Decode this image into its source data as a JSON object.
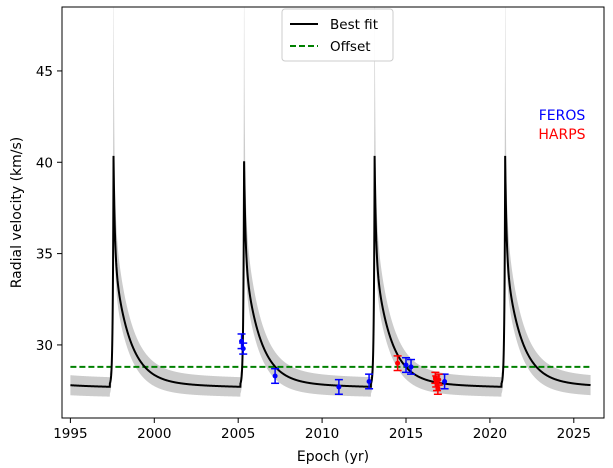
{
  "chart_data": {
    "type": "line",
    "xlabel": "Epoch (yr)",
    "ylabel": "Radial velocity (km/s)",
    "xlim": [
      1994.5,
      2026.8
    ],
    "ylim": [
      26.0,
      48.5
    ],
    "xticks": [
      {
        "value": 1995,
        "label": "1995"
      },
      {
        "value": 2000,
        "label": "2000"
      },
      {
        "value": 2005,
        "label": "2005"
      },
      {
        "value": 2010,
        "label": "2010"
      },
      {
        "value": 2015,
        "label": "2015"
      },
      {
        "value": 2020,
        "label": "2020"
      },
      {
        "value": 2025,
        "label": "2025"
      }
    ],
    "yticks": [
      {
        "value": 30,
        "label": "30"
      },
      {
        "value": 35,
        "label": "35"
      },
      {
        "value": 40,
        "label": "40"
      },
      {
        "value": 45,
        "label": "45"
      }
    ],
    "legend": {
      "placement": "top-center",
      "entries": [
        {
          "label": "Best fit",
          "color": "#000000",
          "style": "solid"
        },
        {
          "label": "Offset",
          "color": "#008000",
          "style": "dashed"
        }
      ]
    },
    "instrument_labels": [
      {
        "label": "FEROS",
        "color": "#0000ff"
      },
      {
        "label": "HARPS",
        "color": "#ff0000"
      }
    ],
    "model": {
      "period": 7.78,
      "periastron_epochs": [
        1997.57,
        2005.35,
        2013.13,
        2020.91
      ],
      "peak": 40.0,
      "minimum": 27.8,
      "band_peak": 48.0
    },
    "best_fit": {
      "name": "Best fit",
      "x_start": 1995.0,
      "x_end": 2026.0
    },
    "offset": {
      "name": "Offset",
      "y": 28.8,
      "x_start": 1995.0,
      "x_end": 2026.0
    },
    "series": [
      {
        "name": "FEROS",
        "color": "#0000ff",
        "points": [
          {
            "x": 2005.2,
            "y": 30.2,
            "err": 0.4
          },
          {
            "x": 2005.3,
            "y": 29.8,
            "err": 0.3
          },
          {
            "x": 2007.2,
            "y": 28.3,
            "err": 0.4
          },
          {
            "x": 2011.0,
            "y": 27.7,
            "err": 0.4
          },
          {
            "x": 2012.8,
            "y": 28.0,
            "err": 0.4
          },
          {
            "x": 2015.0,
            "y": 28.9,
            "err": 0.4
          },
          {
            "x": 2015.3,
            "y": 28.8,
            "err": 0.4
          },
          {
            "x": 2017.3,
            "y": 28.0,
            "err": 0.4
          }
        ]
      },
      {
        "name": "HARPS",
        "color": "#ff0000",
        "points": [
          {
            "x": 2014.5,
            "y": 29.0,
            "err": 0.4
          },
          {
            "x": 2016.75,
            "y": 28.2,
            "err": 0.3
          },
          {
            "x": 2016.8,
            "y": 28.0,
            "err": 0.3
          },
          {
            "x": 2016.85,
            "y": 27.8,
            "err": 0.3
          },
          {
            "x": 2016.9,
            "y": 27.6,
            "err": 0.3
          },
          {
            "x": 2016.95,
            "y": 28.1,
            "err": 0.3
          }
        ]
      }
    ]
  }
}
